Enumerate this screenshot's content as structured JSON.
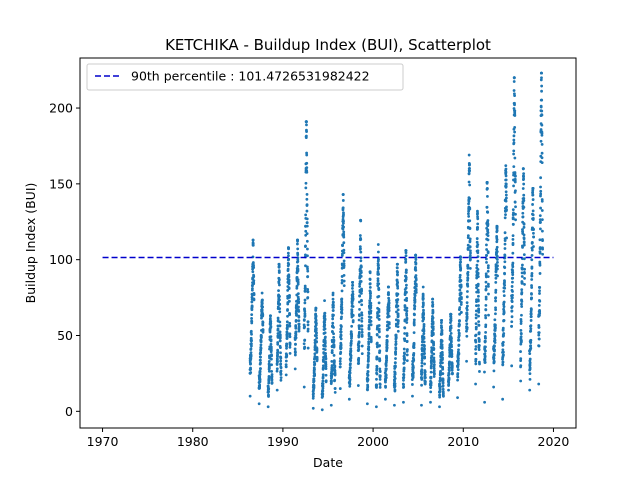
{
  "chart_data": {
    "type": "scatter",
    "title": "KETCHIKA - Buildup Index (BUI), Scatterplot",
    "xlabel": "Date",
    "ylabel": "Buildup Index (BUI)",
    "xlim": [
      1967.5,
      2022.5
    ],
    "ylim": [
      -11,
      233
    ],
    "x_ticks": [
      1970,
      1980,
      1990,
      2000,
      2010,
      2020
    ],
    "y_ticks": [
      0,
      50,
      100,
      150,
      200
    ],
    "grid": false,
    "legend_position": "top-left",
    "point_color": "#1f77b4",
    "reference_line": {
      "label": "90th percentile : 101.4726531982422",
      "y": 101.4726531982422,
      "x_range": [
        1970,
        2020
      ],
      "color": "#0000cc",
      "style": "dashed"
    },
    "seasons": [
      {
        "year": 1986,
        "min": 10,
        "max": 113
      },
      {
        "year": 1987,
        "min": 5,
        "max": 78
      },
      {
        "year": 1988,
        "min": 3,
        "max": 63
      },
      {
        "year": 1989,
        "min": 14,
        "max": 97
      },
      {
        "year": 1990,
        "min": 24,
        "max": 108
      },
      {
        "year": 1991,
        "min": 28,
        "max": 113
      },
      {
        "year": 1992,
        "min": 16,
        "max": 191
      },
      {
        "year": 1993,
        "min": 2,
        "max": 68
      },
      {
        "year": 1994,
        "min": 1,
        "max": 73
      },
      {
        "year": 1995,
        "min": 4,
        "max": 78
      },
      {
        "year": 1996,
        "min": 15,
        "max": 143
      },
      {
        "year": 1997,
        "min": 8,
        "max": 85
      },
      {
        "year": 1998,
        "min": 17,
        "max": 126
      },
      {
        "year": 1999,
        "min": 5,
        "max": 92
      },
      {
        "year": 2000,
        "min": 3,
        "max": 110
      },
      {
        "year": 2001,
        "min": 8,
        "max": 82
      },
      {
        "year": 2002,
        "min": 4,
        "max": 97
      },
      {
        "year": 2003,
        "min": 6,
        "max": 106
      },
      {
        "year": 2004,
        "min": 10,
        "max": 103
      },
      {
        "year": 2005,
        "min": 4,
        "max": 82
      },
      {
        "year": 2006,
        "min": 6,
        "max": 74
      },
      {
        "year": 2007,
        "min": 3,
        "max": 60
      },
      {
        "year": 2008,
        "min": 14,
        "max": 64
      },
      {
        "year": 2009,
        "min": 9,
        "max": 102
      },
      {
        "year": 2010,
        "min": 33,
        "max": 169
      },
      {
        "year": 2011,
        "min": 18,
        "max": 132
      },
      {
        "year": 2012,
        "min": 6,
        "max": 151
      },
      {
        "year": 2013,
        "min": 16,
        "max": 122
      },
      {
        "year": 2014,
        "min": 8,
        "max": 162
      },
      {
        "year": 2015,
        "min": 30,
        "max": 220
      },
      {
        "year": 2016,
        "min": 20,
        "max": 160
      },
      {
        "year": 2017,
        "min": 14,
        "max": 147
      },
      {
        "year": 2018,
        "min": 18,
        "max": 223
      }
    ]
  }
}
